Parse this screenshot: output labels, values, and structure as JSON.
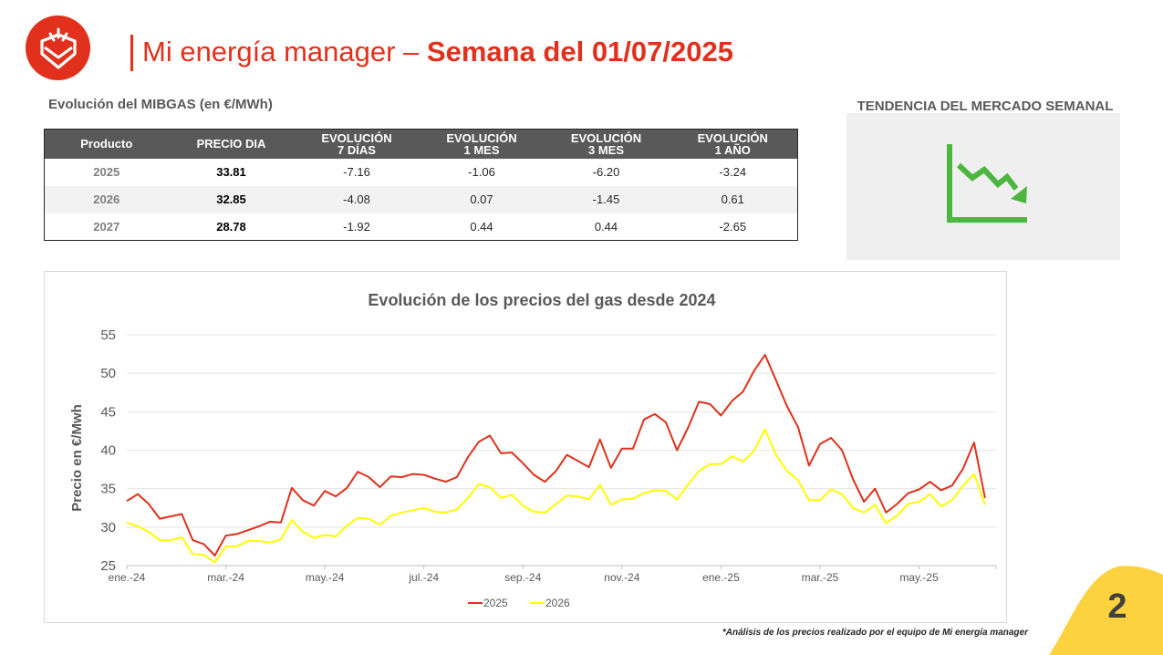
{
  "header": {
    "title_light": "Mi energía manager – ",
    "title_bold": "Semana del 01/07/2025"
  },
  "colors": {
    "brand_red": "#e1301c",
    "series_2025": "#e1301c",
    "series_2026": "#ffff00",
    "trend_green": "#4cb640",
    "badge_yellow": "#fcd33f"
  },
  "icons": {
    "logo": "house-shield-logo-icon",
    "trend": "downward-trend-arrow-icon"
  },
  "mibgas": {
    "caption": "Evolución del MIBGAS (en €/MWh)",
    "headers": [
      [
        "Producto"
      ],
      [
        "PRECIO DIA"
      ],
      [
        "EVOLUCIÓN",
        "7 DÍAS"
      ],
      [
        "EVOLUCIÓN",
        "1 MES"
      ],
      [
        "EVOLUCIÓN",
        "3 MES"
      ],
      [
        "EVOLUCIÓN",
        "1 AÑO"
      ]
    ],
    "rows": [
      [
        "2025",
        "33.81",
        "-7.16",
        "-1.06",
        "-6.20",
        "-3.24"
      ],
      [
        "2026",
        "32.85",
        "-4.08",
        "0.07",
        "-1.45",
        "0.61"
      ],
      [
        "2027",
        "28.78",
        "-1.92",
        "0.44",
        "0.44",
        "-2.65"
      ]
    ]
  },
  "trend": {
    "title": "TENDENCIA DEL MERCADO SEMANAL"
  },
  "chart_data": {
    "type": "line",
    "title": "Evolución de los precios del gas desde 2024",
    "ylabel": "Precio en €/Mwh",
    "xlabel": "",
    "ylim": [
      25,
      55
    ],
    "yticks": [
      25,
      30,
      35,
      40,
      45,
      50,
      55
    ],
    "grid": true,
    "legend_position": "bottom",
    "x_tick_labels": [
      "ene.-24",
      "mar.-24",
      "may.-24",
      "jul.-24",
      "sep.-24",
      "nov.-24",
      "ene.-25",
      "mar.-25",
      "may.-25"
    ],
    "x_tick_weeks": [
      0,
      9,
      18,
      27,
      36,
      45,
      54,
      63,
      72
    ],
    "x_range_weeks": [
      0,
      79
    ],
    "x_week_start": "2024-01-01",
    "series": [
      {
        "name": "2025",
        "color": "#e1301c",
        "values": [
          33.4,
          34.3,
          33.0,
          31.1,
          31.4,
          31.7,
          28.3,
          27.8,
          26.3,
          28.9,
          29.1,
          29.6,
          30.1,
          30.7,
          30.6,
          35.1,
          33.5,
          32.8,
          34.7,
          34.0,
          35.1,
          37.2,
          36.5,
          35.2,
          36.6,
          36.5,
          36.9,
          36.8,
          36.3,
          35.9,
          36.5,
          39.1,
          41.1,
          41.9,
          39.6,
          39.7,
          38.3,
          36.8,
          35.9,
          37.3,
          39.4,
          38.6,
          37.8,
          41.4,
          37.7,
          40.2,
          40.2,
          44.0,
          44.7,
          43.6,
          40.0,
          42.9,
          46.3,
          46.0,
          44.5,
          46.4,
          47.6,
          50.3,
          52.4,
          49.1,
          45.7,
          43.0,
          38.0,
          40.8,
          41.6,
          40.0,
          36.2,
          33.3,
          35.0,
          31.9,
          33.0,
          34.4,
          34.9,
          35.9,
          34.8,
          35.4,
          37.6,
          41.0,
          33.8
        ]
      },
      {
        "name": "2026",
        "color": "#ffff00",
        "values": [
          30.6,
          30.1,
          29.4,
          28.3,
          28.3,
          28.7,
          26.5,
          26.4,
          25.4,
          27.5,
          27.5,
          28.2,
          28.2,
          28.0,
          28.4,
          30.9,
          29.4,
          28.6,
          29.0,
          28.8,
          30.2,
          31.2,
          31.1,
          30.3,
          31.5,
          31.9,
          32.2,
          32.5,
          32.0,
          31.9,
          32.3,
          33.8,
          35.6,
          35.2,
          33.8,
          34.2,
          32.8,
          32.0,
          31.9,
          33.0,
          34.1,
          34.0,
          33.6,
          35.5,
          32.9,
          33.6,
          33.7,
          34.4,
          34.8,
          34.7,
          33.6,
          35.5,
          37.3,
          38.2,
          38.2,
          39.2,
          38.5,
          39.9,
          42.7,
          39.4,
          37.3,
          36.1,
          33.5,
          33.5,
          34.9,
          34.3,
          32.5,
          31.9,
          32.9,
          30.5,
          31.5,
          33.0,
          33.3,
          34.3,
          32.7,
          33.5,
          35.4,
          36.9,
          32.9
        ]
      }
    ]
  },
  "footnote": "*Análisis de los precios realizado por el equipo de Mi energía manager",
  "page_number": "2"
}
